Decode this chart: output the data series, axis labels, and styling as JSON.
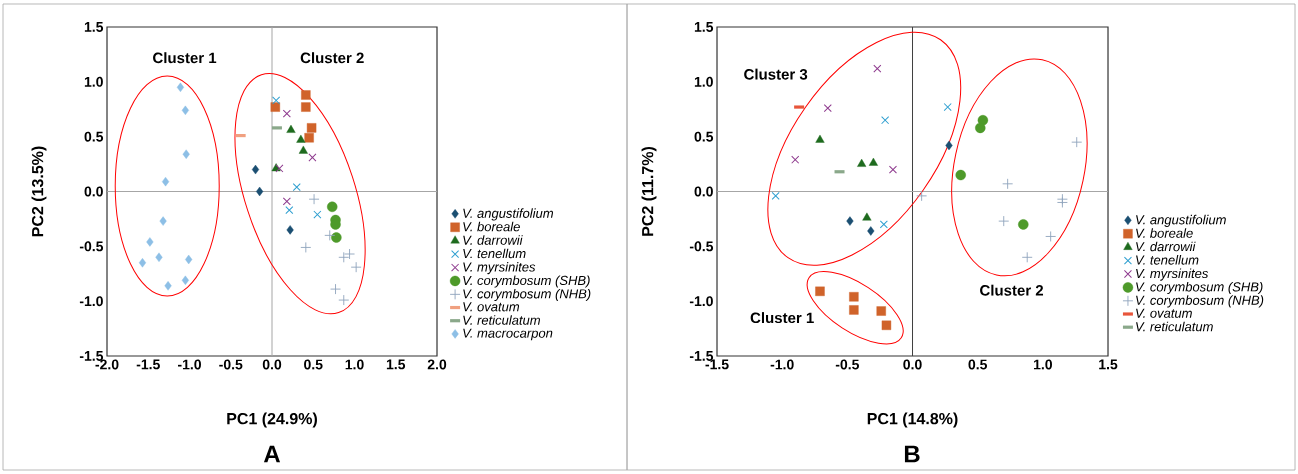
{
  "chart_data": [
    {
      "type": "scatter",
      "title": "A",
      "xlabel": "PC1 (24.9%)",
      "ylabel": "PC2 (13.5%)",
      "xlim": [
        -2,
        2
      ],
      "ylim": [
        -1.5,
        1.5
      ],
      "xticks": [
        {
          "value": -2,
          "label": "-2.0"
        },
        {
          "value": -1.5,
          "label": "-1.5"
        },
        {
          "value": -1,
          "label": "-1.0"
        },
        {
          "value": -0.5,
          "label": "-0.5"
        },
        {
          "value": 0,
          "label": "0.0"
        },
        {
          "value": 0.5,
          "label": "0.5"
        },
        {
          "value": 1,
          "label": "1.0"
        },
        {
          "value": 1.5,
          "label": "1.5"
        },
        {
          "value": 2,
          "label": "2.0"
        }
      ],
      "yticks": [
        {
          "value": -1.5,
          "label": "-1.5"
        },
        {
          "value": -1,
          "label": "-1.0"
        },
        {
          "value": -0.5,
          "label": "-0.5"
        },
        {
          "value": 0,
          "label": "0.0"
        },
        {
          "value": 0.5,
          "label": "0.5"
        },
        {
          "value": 1,
          "label": "1.0"
        },
        {
          "value": 1.5,
          "label": "1.5"
        }
      ],
      "legend": "right",
      "ref_lines": [
        {
          "axis": "x",
          "value": 0,
          "color": "#a6a6a6"
        },
        {
          "axis": "y",
          "value": 0,
          "color": "#a6a6a6"
        }
      ],
      "annotations": [
        "Cluster 1",
        "Cluster 2"
      ],
      "series": [
        {
          "name": "V. angustifolium",
          "color": "#1b4f72",
          "marker": "diamond",
          "x": [
            -0.2,
            -0.15,
            0.22
          ],
          "values": [
            0.2,
            0.0,
            -0.35
          ]
        },
        {
          "name": "V. boreale",
          "color": "#d0632a",
          "marker": "square",
          "x": [
            0.04,
            0.41,
            0.41,
            0.48,
            0.45
          ],
          "values": [
            0.77,
            0.88,
            0.77,
            0.58,
            0.49
          ]
        },
        {
          "name": "V. darrowii",
          "color": "#1e6b1e",
          "marker": "triangle",
          "x": [
            0.23,
            0.35,
            0.38,
            0.05
          ],
          "values": [
            0.56,
            0.47,
            0.37,
            0.21
          ]
        },
        {
          "name": "V. tenellum",
          "color": "#2e9fd0",
          "marker": "cross",
          "x": [
            0.05,
            0.3,
            0.21,
            0.55
          ],
          "values": [
            0.83,
            0.04,
            -0.17,
            -0.21
          ]
        },
        {
          "name": "V. myrsinites",
          "color": "#8e3a8e",
          "marker": "cross",
          "x": [
            0.18,
            0.49,
            0.09,
            0.18
          ],
          "values": [
            0.71,
            0.31,
            0.21,
            -0.09
          ]
        },
        {
          "name": "V. corymbosum (SHB)",
          "color": "#4e9a2a",
          "marker": "circle",
          "x": [
            0.73,
            0.77,
            0.77,
            0.78
          ],
          "values": [
            -0.14,
            -0.26,
            -0.3,
            -0.42
          ]
        },
        {
          "name": "V. corymbosum (NHB)",
          "color": "#8fa4bc",
          "marker": "plus",
          "x": [
            0.51,
            0.7,
            0.41,
            0.87,
            0.94,
            1.02,
            0.77,
            0.87
          ],
          "values": [
            -0.07,
            -0.4,
            -0.51,
            -0.6,
            -0.57,
            -0.69,
            -0.89,
            -0.99
          ]
        },
        {
          "name": "V. ovatum",
          "color": "#f0a080",
          "x": [
            -0.38
          ],
          "values": [
            0.51
          ]
        },
        {
          "name": "V. reticulatum",
          "color": "#8aa88a",
          "x": [
            0.06
          ],
          "values": [
            0.58
          ]
        },
        {
          "name": "V. macrocarpon",
          "color": "#8dbfe6",
          "marker": "diamond",
          "x": [
            -1.11,
            -1.05,
            -1.04,
            -1.29,
            -1.32,
            -1.48,
            -1.57,
            -1.37,
            -1.01,
            -1.05,
            -1.26
          ],
          "values": [
            0.95,
            0.74,
            0.34,
            0.09,
            -0.27,
            -0.46,
            -0.65,
            -0.6,
            -0.62,
            -0.81,
            -0.86
          ]
        }
      ]
    },
    {
      "type": "scatter",
      "title": "B",
      "xlabel": "PC1 (14.8%)",
      "ylabel": "PC2 (11.7%)",
      "xlim": [
        -1.5,
        1.5
      ],
      "ylim": [
        -1.5,
        1.5
      ],
      "xticks": [
        {
          "value": -1.5,
          "label": "-1.5"
        },
        {
          "value": -1,
          "label": "-1.0"
        },
        {
          "value": -0.5,
          "label": "-0.5"
        },
        {
          "value": 0,
          "label": "0.0"
        },
        {
          "value": 0.5,
          "label": "0.5"
        },
        {
          "value": 1,
          "label": "1.0"
        },
        {
          "value": 1.5,
          "label": "1.5"
        }
      ],
      "yticks": [
        {
          "value": -1.5,
          "label": "-1.5"
        },
        {
          "value": -1,
          "label": "-1.0"
        },
        {
          "value": -0.5,
          "label": "-0.5"
        },
        {
          "value": 0,
          "label": "0.0"
        },
        {
          "value": 0.5,
          "label": "0.5"
        },
        {
          "value": 1,
          "label": "1.0"
        },
        {
          "value": 1.5,
          "label": "1.5"
        }
      ],
      "legend": "right",
      "ref_lines": [
        {
          "axis": "x",
          "value": 0,
          "color": "#404040"
        },
        {
          "axis": "y",
          "value": 0,
          "color": "#a6a6a6"
        }
      ],
      "annotations": [
        "Cluster 3",
        "Cluster 1",
        "Cluster 2"
      ],
      "series": [
        {
          "name": "V. angustifolium",
          "color": "#1b4f72",
          "marker": "diamond",
          "x": [
            -0.48,
            -0.32,
            0.28
          ],
          "values": [
            -0.27,
            -0.36,
            0.42
          ]
        },
        {
          "name": "V. boreale",
          "color": "#d0632a",
          "marker": "square",
          "x": [
            -0.71,
            -0.45,
            -0.45,
            -0.24,
            -0.2
          ],
          "values": [
            -0.91,
            -0.96,
            -1.08,
            -1.09,
            -1.22
          ]
        },
        {
          "name": "V. darrowii",
          "color": "#1e6b1e",
          "marker": "triangle",
          "x": [
            -0.71,
            -0.39,
            -0.3,
            -0.35
          ],
          "values": [
            0.47,
            0.25,
            0.26,
            -0.24
          ]
        },
        {
          "name": "V. tenellum",
          "color": "#2e9fd0",
          "marker": "cross",
          "x": [
            -1.05,
            -0.21,
            -0.22,
            0.27
          ],
          "values": [
            -0.04,
            0.65,
            -0.3,
            0.77
          ]
        },
        {
          "name": "V. myrsinites",
          "color": "#8e3a8e",
          "marker": "cross",
          "x": [
            -0.27,
            -0.65,
            -0.9,
            -0.15
          ],
          "values": [
            1.12,
            0.76,
            0.29,
            0.2
          ]
        },
        {
          "name": "V. corymbosum (SHB)",
          "color": "#4e9a2a",
          "marker": "circle",
          "x": [
            0.54,
            0.52,
            0.37,
            0.85
          ],
          "values": [
            0.65,
            0.58,
            0.15,
            -0.3
          ]
        },
        {
          "name": "V. corymbosum (NHB)",
          "color": "#8fa4bc",
          "marker": "plus",
          "x": [
            0.07,
            1.26,
            0.73,
            1.15,
            1.15,
            0.7,
            1.06,
            0.88
          ],
          "values": [
            -0.04,
            0.45,
            0.07,
            -0.07,
            -0.1,
            -0.27,
            -0.41,
            -0.6
          ]
        },
        {
          "name": "V. ovatum",
          "color": "#e8553a",
          "x": [
            -0.87
          ],
          "values": [
            0.77
          ]
        },
        {
          "name": "V. reticulatum",
          "color": "#8aa88a",
          "x": [
            -0.56
          ],
          "values": [
            0.18
          ]
        }
      ]
    }
  ]
}
